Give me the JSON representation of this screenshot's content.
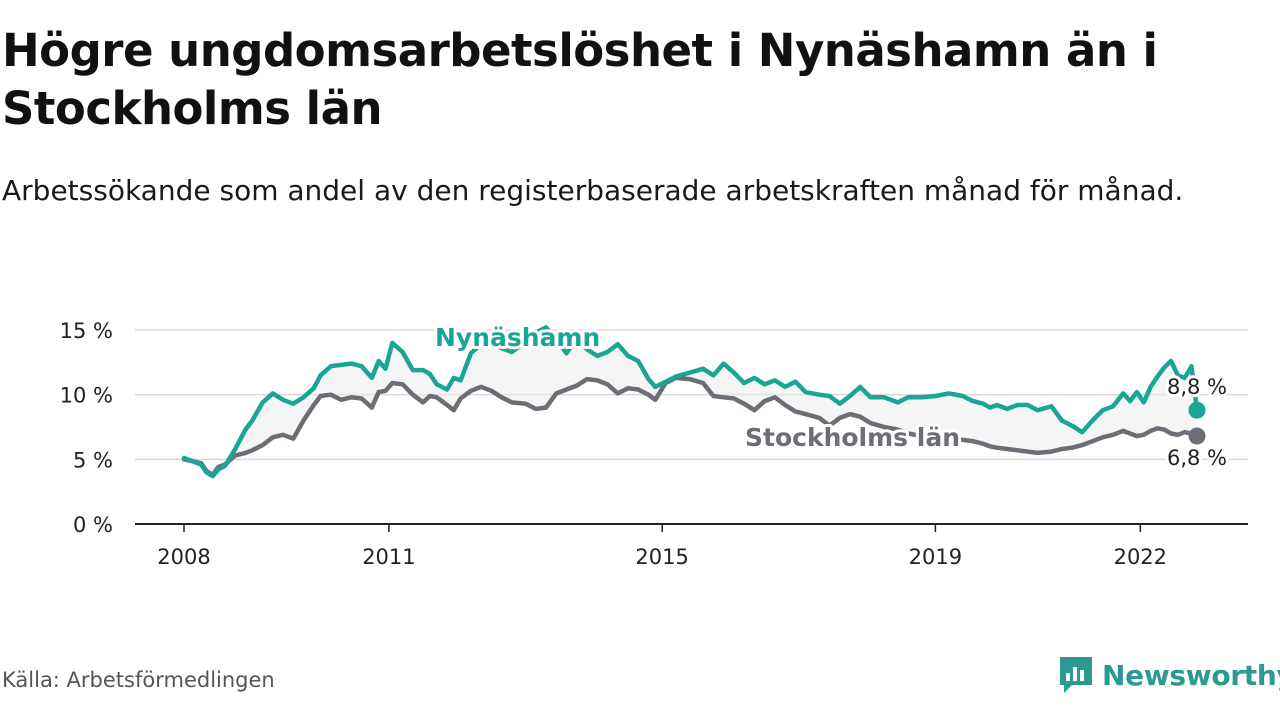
{
  "title": "Högre ungdomsarbetslöshet i Nynäshamn än i Stockholms län",
  "subtitle": "Arbetssökande som andel av den registerbaserade arbetskraften månad för månad.",
  "source": "Källa: Arbetsförmedlingen",
  "brand": "Newsworthy",
  "colors": {
    "nynashamn": "#1aa594",
    "stockholm": "#6e6c74",
    "band": "#ececec",
    "grid": "#d9d9d9",
    "axis": "#222222",
    "brand": "#2b9a92"
  },
  "chart_data": {
    "type": "line",
    "xlabel": "",
    "ylabel": "",
    "ylim": [
      0,
      15
    ],
    "xlim": [
      2008,
      2022.83
    ],
    "y_ticks": [
      0,
      5,
      10,
      15
    ],
    "y_tick_labels": [
      "0 %",
      "5 %",
      "10 %",
      "15 %"
    ],
    "x_ticks": [
      2008,
      2011,
      2015,
      2019,
      2022
    ],
    "x_tick_labels": [
      "2008",
      "2011",
      "2015",
      "2019",
      "2022"
    ],
    "grid": true,
    "series": [
      {
        "name": "Nynäshamn",
        "color": "#1aa594",
        "end_label": "8,8 %",
        "points": [
          [
            2008.0,
            5.1
          ],
          [
            2008.25,
            4.6
          ],
          [
            2008.33,
            4.0
          ],
          [
            2008.42,
            3.7
          ],
          [
            2008.5,
            4.2
          ],
          [
            2008.6,
            4.5
          ],
          [
            2008.75,
            5.8
          ],
          [
            2008.9,
            7.3
          ],
          [
            2009.0,
            8.0
          ],
          [
            2009.15,
            9.4
          ],
          [
            2009.3,
            10.1
          ],
          [
            2009.45,
            9.6
          ],
          [
            2009.6,
            9.3
          ],
          [
            2009.75,
            9.8
          ],
          [
            2009.9,
            10.5
          ],
          [
            2010.0,
            11.5
          ],
          [
            2010.15,
            12.2
          ],
          [
            2010.3,
            12.3
          ],
          [
            2010.45,
            12.4
          ],
          [
            2010.6,
            12.2
          ],
          [
            2010.75,
            11.3
          ],
          [
            2010.85,
            12.6
          ],
          [
            2010.95,
            12.0
          ],
          [
            2011.05,
            14.0
          ],
          [
            2011.2,
            13.3
          ],
          [
            2011.35,
            11.9
          ],
          [
            2011.5,
            11.9
          ],
          [
            2011.6,
            11.6
          ],
          [
            2011.7,
            10.8
          ],
          [
            2011.85,
            10.4
          ],
          [
            2011.95,
            11.3
          ],
          [
            2012.05,
            11.1
          ],
          [
            2012.2,
            13.2
          ],
          [
            2012.35,
            13.9
          ],
          [
            2012.5,
            14.0
          ],
          [
            2012.65,
            13.6
          ],
          [
            2012.8,
            13.3
          ],
          [
            2013.0,
            14.1
          ],
          [
            2013.15,
            14.8
          ],
          [
            2013.3,
            15.2
          ],
          [
            2013.45,
            14.3
          ],
          [
            2013.6,
            13.2
          ],
          [
            2013.75,
            14.4
          ],
          [
            2013.9,
            13.5
          ],
          [
            2014.05,
            13.0
          ],
          [
            2014.2,
            13.3
          ],
          [
            2014.35,
            13.9
          ],
          [
            2014.5,
            13.0
          ],
          [
            2014.65,
            12.6
          ],
          [
            2014.8,
            11.2
          ],
          [
            2014.9,
            10.6
          ],
          [
            2015.05,
            11.0
          ],
          [
            2015.2,
            11.4
          ],
          [
            2015.4,
            11.7
          ],
          [
            2015.6,
            12.0
          ],
          [
            2015.75,
            11.5
          ],
          [
            2015.9,
            12.4
          ],
          [
            2016.05,
            11.7
          ],
          [
            2016.2,
            10.9
          ],
          [
            2016.35,
            11.3
          ],
          [
            2016.5,
            10.8
          ],
          [
            2016.65,
            11.1
          ],
          [
            2016.8,
            10.6
          ],
          [
            2016.95,
            11.0
          ],
          [
            2017.1,
            10.2
          ],
          [
            2017.3,
            10.0
          ],
          [
            2017.45,
            9.9
          ],
          [
            2017.6,
            9.3
          ],
          [
            2017.75,
            9.9
          ],
          [
            2017.9,
            10.6
          ],
          [
            2018.05,
            9.8
          ],
          [
            2018.25,
            9.8
          ],
          [
            2018.45,
            9.4
          ],
          [
            2018.6,
            9.8
          ],
          [
            2018.8,
            9.8
          ],
          [
            2019.0,
            9.9
          ],
          [
            2019.2,
            10.1
          ],
          [
            2019.4,
            9.9
          ],
          [
            2019.55,
            9.5
          ],
          [
            2019.7,
            9.3
          ],
          [
            2019.8,
            9.0
          ],
          [
            2019.9,
            9.2
          ],
          [
            2020.05,
            8.9
          ],
          [
            2020.2,
            9.2
          ],
          [
            2020.35,
            9.2
          ],
          [
            2020.5,
            8.8
          ],
          [
            2020.7,
            9.1
          ],
          [
            2020.85,
            8.0
          ],
          [
            2021.0,
            7.6
          ],
          [
            2021.15,
            7.1
          ],
          [
            2021.3,
            8.0
          ],
          [
            2021.45,
            8.8
          ],
          [
            2021.6,
            9.1
          ],
          [
            2021.75,
            10.1
          ],
          [
            2021.85,
            9.5
          ],
          [
            2021.95,
            10.2
          ],
          [
            2022.05,
            9.4
          ],
          [
            2022.15,
            10.6
          ],
          [
            2022.25,
            11.4
          ],
          [
            2022.35,
            12.1
          ],
          [
            2022.45,
            12.6
          ],
          [
            2022.55,
            11.5
          ],
          [
            2022.65,
            11.3
          ],
          [
            2022.75,
            12.2
          ],
          [
            2022.83,
            8.8
          ]
        ]
      },
      {
        "name": "Stockholms län",
        "color": "#6e6c74",
        "end_label": "6,8 %",
        "points": [
          [
            2008.0,
            5.0
          ],
          [
            2008.25,
            4.7
          ],
          [
            2008.33,
            4.1
          ],
          [
            2008.42,
            3.8
          ],
          [
            2008.5,
            4.4
          ],
          [
            2008.6,
            4.6
          ],
          [
            2008.75,
            5.3
          ],
          [
            2008.9,
            5.5
          ],
          [
            2009.0,
            5.7
          ],
          [
            2009.15,
            6.1
          ],
          [
            2009.3,
            6.7
          ],
          [
            2009.45,
            6.9
          ],
          [
            2009.6,
            6.6
          ],
          [
            2009.75,
            8.0
          ],
          [
            2009.9,
            9.2
          ],
          [
            2010.0,
            9.9
          ],
          [
            2010.15,
            10.0
          ],
          [
            2010.3,
            9.6
          ],
          [
            2010.45,
            9.8
          ],
          [
            2010.6,
            9.7
          ],
          [
            2010.75,
            9.0
          ],
          [
            2010.85,
            10.2
          ],
          [
            2010.95,
            10.3
          ],
          [
            2011.05,
            10.9
          ],
          [
            2011.2,
            10.8
          ],
          [
            2011.35,
            10.0
          ],
          [
            2011.5,
            9.4
          ],
          [
            2011.6,
            9.9
          ],
          [
            2011.7,
            9.8
          ],
          [
            2011.85,
            9.2
          ],
          [
            2011.95,
            8.8
          ],
          [
            2012.05,
            9.7
          ],
          [
            2012.2,
            10.3
          ],
          [
            2012.35,
            10.6
          ],
          [
            2012.5,
            10.3
          ],
          [
            2012.65,
            9.8
          ],
          [
            2012.8,
            9.4
          ],
          [
            2013.0,
            9.3
          ],
          [
            2013.15,
            8.9
          ],
          [
            2013.3,
            9.0
          ],
          [
            2013.45,
            10.1
          ],
          [
            2013.6,
            10.4
          ],
          [
            2013.75,
            10.7
          ],
          [
            2013.9,
            11.2
          ],
          [
            2014.05,
            11.1
          ],
          [
            2014.2,
            10.8
          ],
          [
            2014.35,
            10.1
          ],
          [
            2014.5,
            10.5
          ],
          [
            2014.65,
            10.4
          ],
          [
            2014.8,
            10.0
          ],
          [
            2014.9,
            9.6
          ],
          [
            2015.05,
            10.9
          ],
          [
            2015.2,
            11.3
          ],
          [
            2015.4,
            11.2
          ],
          [
            2015.6,
            10.9
          ],
          [
            2015.75,
            9.9
          ],
          [
            2015.9,
            9.8
          ],
          [
            2016.05,
            9.7
          ],
          [
            2016.2,
            9.3
          ],
          [
            2016.35,
            8.8
          ],
          [
            2016.5,
            9.5
          ],
          [
            2016.65,
            9.8
          ],
          [
            2016.8,
            9.2
          ],
          [
            2016.95,
            8.7
          ],
          [
            2017.1,
            8.5
          ],
          [
            2017.3,
            8.2
          ],
          [
            2017.45,
            7.6
          ],
          [
            2017.6,
            8.2
          ],
          [
            2017.75,
            8.5
          ],
          [
            2017.9,
            8.3
          ],
          [
            2018.05,
            7.8
          ],
          [
            2018.25,
            7.5
          ],
          [
            2018.45,
            7.3
          ],
          [
            2018.6,
            7.0
          ],
          [
            2018.8,
            6.8
          ],
          [
            2019.0,
            6.7
          ],
          [
            2019.2,
            6.6
          ],
          [
            2019.4,
            6.5
          ],
          [
            2019.55,
            6.4
          ],
          [
            2019.7,
            6.2
          ],
          [
            2019.8,
            6.0
          ],
          [
            2019.9,
            5.9
          ],
          [
            2020.05,
            5.8
          ],
          [
            2020.2,
            5.7
          ],
          [
            2020.35,
            5.6
          ],
          [
            2020.5,
            5.5
          ],
          [
            2020.7,
            5.6
          ],
          [
            2020.85,
            5.8
          ],
          [
            2021.0,
            5.9
          ],
          [
            2021.15,
            6.1
          ],
          [
            2021.3,
            6.4
          ],
          [
            2021.45,
            6.7
          ],
          [
            2021.6,
            6.9
          ],
          [
            2021.75,
            7.2
          ],
          [
            2021.85,
            7.0
          ],
          [
            2021.95,
            6.8
          ],
          [
            2022.05,
            6.9
          ],
          [
            2022.15,
            7.2
          ],
          [
            2022.25,
            7.4
          ],
          [
            2022.35,
            7.3
          ],
          [
            2022.45,
            7.0
          ],
          [
            2022.55,
            6.9
          ],
          [
            2022.65,
            7.1
          ],
          [
            2022.75,
            7.0
          ],
          [
            2022.83,
            6.8
          ]
        ]
      }
    ]
  }
}
